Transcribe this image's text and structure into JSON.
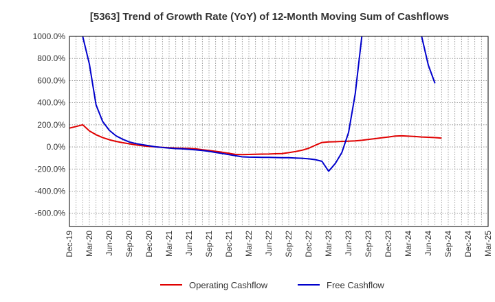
{
  "chart_data": {
    "type": "line",
    "title": "[5363]  Trend of Growth Rate (YoY) of 12-Month Moving Sum of Cashflows",
    "x_ticks": [
      "Dec-19",
      "Mar-20",
      "Jun-20",
      "Sep-20",
      "Dec-20",
      "Mar-21",
      "Jun-21",
      "Sep-21",
      "Dec-21",
      "Mar-22",
      "Jun-22",
      "Sep-22",
      "Dec-22",
      "Mar-23",
      "Jun-23",
      "Sep-23",
      "Dec-23",
      "Mar-24",
      "Jun-24",
      "Sep-24",
      "Dec-24",
      "Mar-25"
    ],
    "y_ticks": [
      "1000.0%",
      "800.0%",
      "600.0%",
      "400.0%",
      "200.0%",
      "0.0%",
      "-200.0%",
      "-400.0%",
      "-600.0%"
    ],
    "ylim": [
      -720,
      1000
    ],
    "grid": true,
    "legend_position": "bottom",
    "series": [
      {
        "name": "Operating Cashflow",
        "color": "#e00000",
        "values": [
          170,
          185,
          200,
          145,
          110,
          85,
          65,
          50,
          38,
          28,
          18,
          10,
          4,
          0,
          -4,
          -8,
          -10,
          -12,
          -14,
          -18,
          -25,
          -32,
          -40,
          -48,
          -58,
          -68,
          -70,
          -68,
          -66,
          -65,
          -64,
          -62,
          -60,
          -52,
          -42,
          -30,
          -12,
          15,
          40,
          45,
          47,
          50,
          52,
          55,
          60,
          68,
          75,
          82,
          90,
          98,
          100,
          97,
          94,
          90,
          87,
          84,
          80
        ]
      },
      {
        "name": "Free Cashflow",
        "color": "#0000cc",
        "values": [
          null,
          null,
          1000,
          750,
          380,
          230,
          150,
          100,
          70,
          45,
          30,
          20,
          10,
          0,
          -5,
          -10,
          -15,
          -18,
          -22,
          -27,
          -32,
          -40,
          -50,
          -60,
          -70,
          -80,
          -90,
          -92,
          -93,
          -94,
          -95,
          -96,
          -97,
          -98,
          -100,
          -103,
          -108,
          -115,
          -130,
          -220,
          -150,
          -50,
          130,
          480,
          1000,
          null,
          null,
          null,
          null,
          null,
          null,
          null,
          null,
          1000,
          740,
          575
        ]
      }
    ]
  }
}
